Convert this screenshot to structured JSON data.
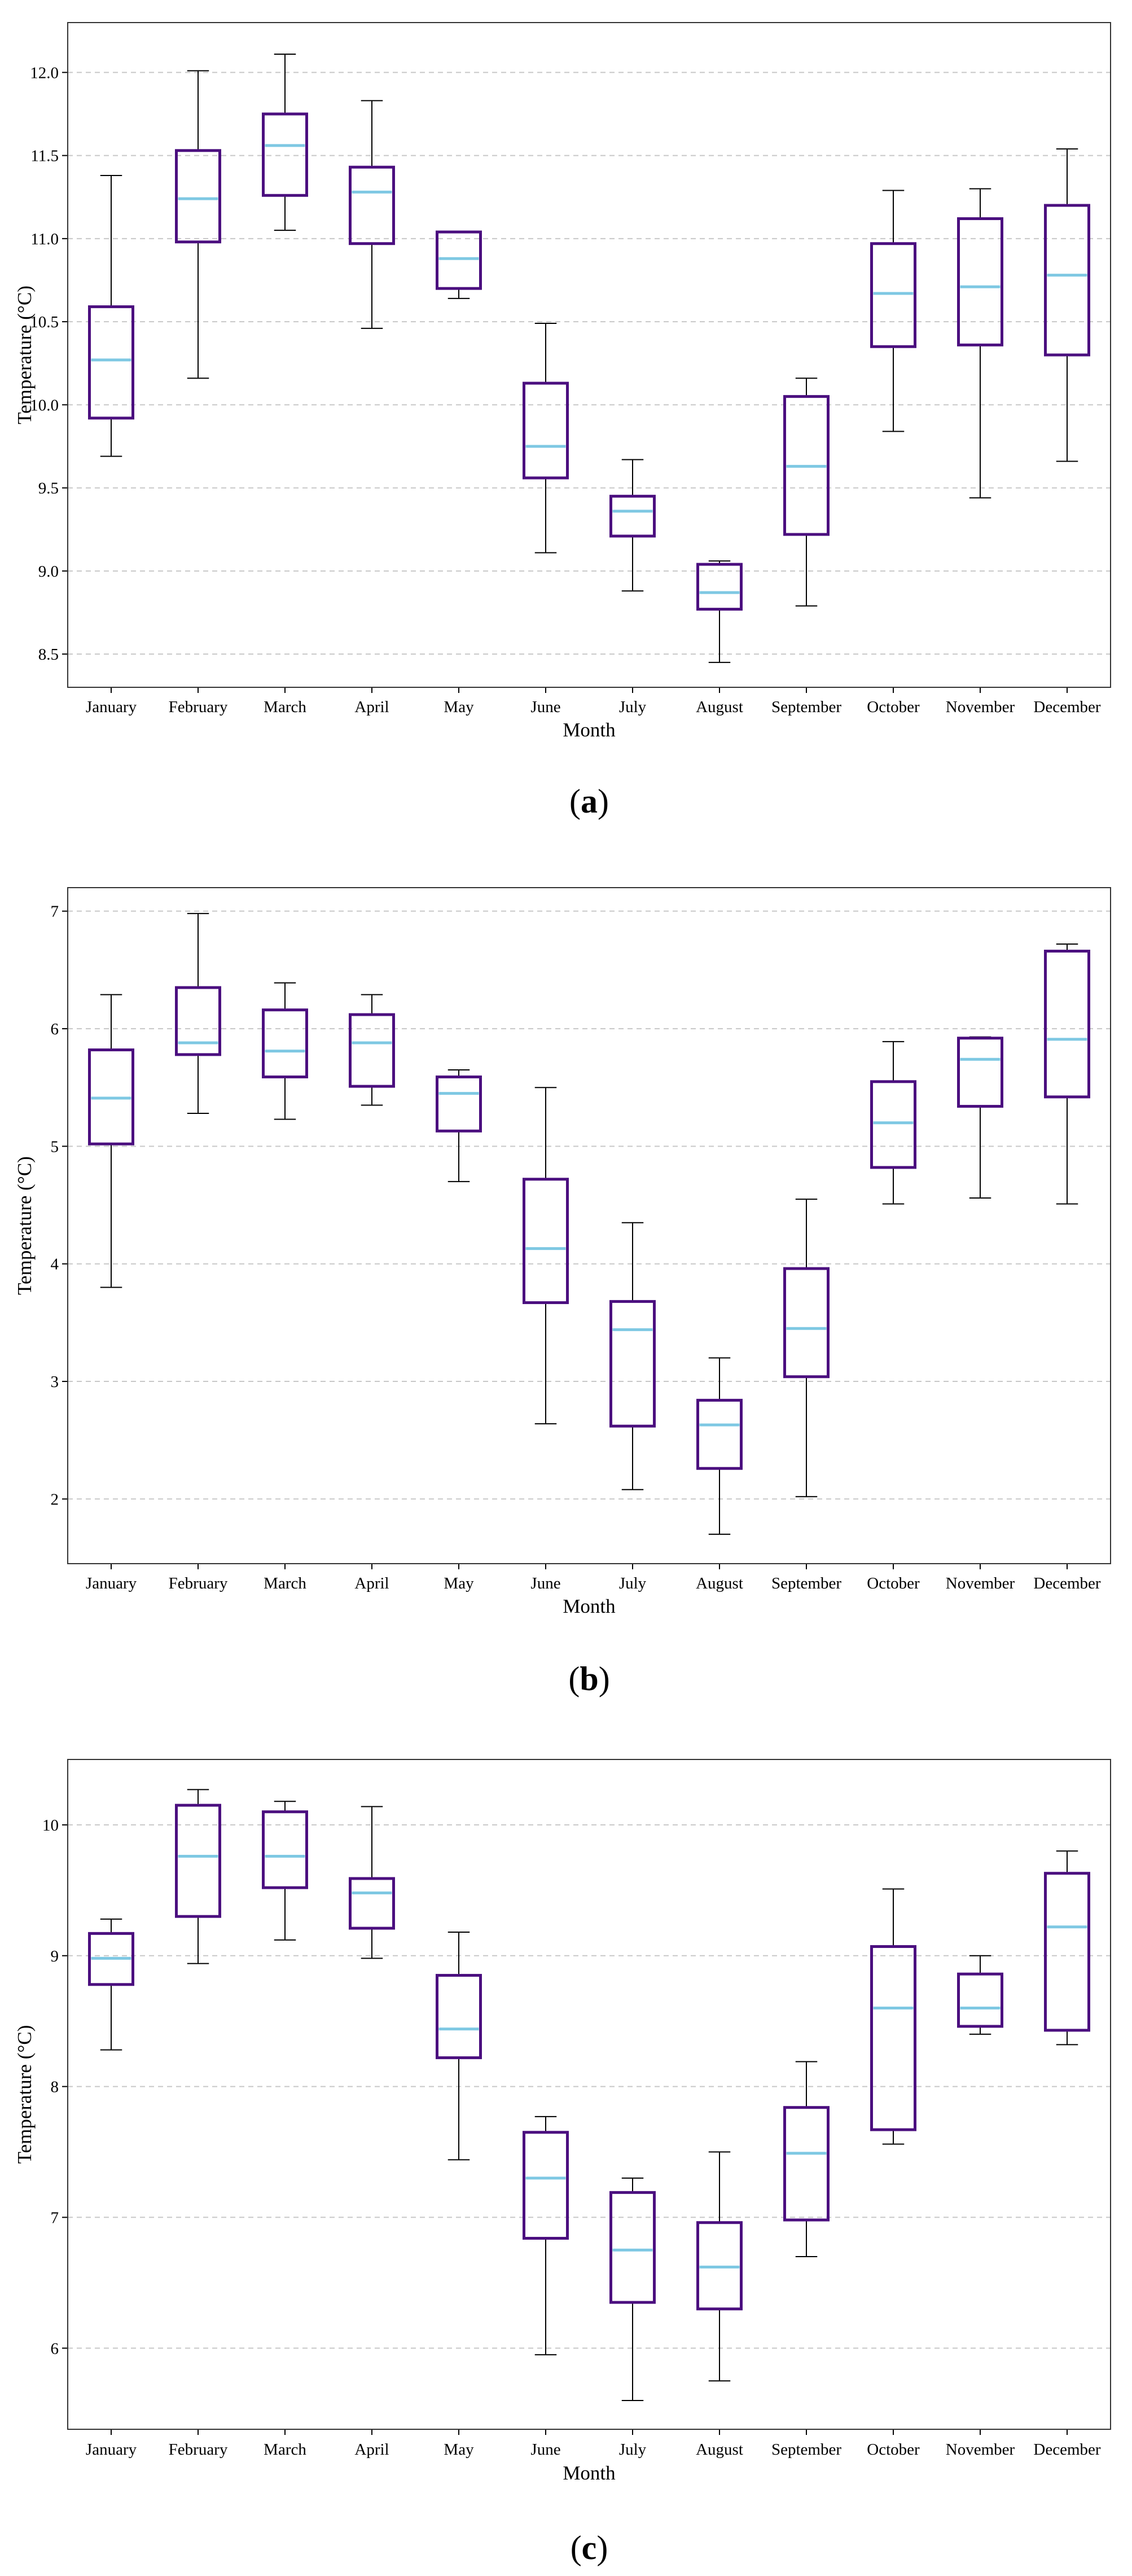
{
  "chart_data": [
    {
      "type": "box",
      "panel_label": "a",
      "xlabel": "Month",
      "ylabel": "Temperature (°C)",
      "ylim": [
        8.3,
        12.3
      ],
      "yticks": [
        8.5,
        9.0,
        9.5,
        10.0,
        10.5,
        11.0,
        11.5,
        12.0
      ],
      "ytick_labels": [
        "8.5",
        "9.0",
        "9.5",
        "10.0",
        "10.5",
        "11.0",
        "11.5",
        "12.0"
      ],
      "grid": "horizontal dashed",
      "colors": {
        "box": "#4b0f7f",
        "median": "#7ec8e3",
        "whisker": "#000000",
        "grid": "#c8c8c8"
      },
      "categories": [
        "January",
        "February",
        "March",
        "April",
        "May",
        "June",
        "July",
        "August",
        "September",
        "October",
        "November",
        "December"
      ],
      "series": [
        {
          "name": "January",
          "whislo": 9.69,
          "q1": 9.92,
          "med": 10.27,
          "q3": 10.59,
          "whishi": 11.38
        },
        {
          "name": "February",
          "whislo": 10.16,
          "q1": 10.98,
          "med": 11.24,
          "q3": 11.53,
          "whishi": 12.01
        },
        {
          "name": "March",
          "whislo": 11.05,
          "q1": 11.26,
          "med": 11.56,
          "q3": 11.75,
          "whishi": 12.11
        },
        {
          "name": "April",
          "whislo": 10.46,
          "q1": 10.97,
          "med": 11.28,
          "q3": 11.43,
          "whishi": 11.83
        },
        {
          "name": "May",
          "whislo": 10.64,
          "q1": 10.7,
          "med": 10.88,
          "q3": 11.04,
          "whishi": 11.04
        },
        {
          "name": "June",
          "whislo": 9.11,
          "q1": 9.56,
          "med": 9.75,
          "q3": 10.13,
          "whishi": 10.49
        },
        {
          "name": "July",
          "whislo": 8.88,
          "q1": 9.21,
          "med": 9.36,
          "q3": 9.45,
          "whishi": 9.67
        },
        {
          "name": "August",
          "whislo": 8.45,
          "q1": 8.77,
          "med": 8.87,
          "q3": 9.04,
          "whishi": 9.06
        },
        {
          "name": "September",
          "whislo": 8.79,
          "q1": 9.22,
          "med": 9.63,
          "q3": 10.05,
          "whishi": 10.16
        },
        {
          "name": "October",
          "whislo": 9.84,
          "q1": 10.35,
          "med": 10.67,
          "q3": 10.97,
          "whishi": 11.29
        },
        {
          "name": "November",
          "whislo": 9.44,
          "q1": 10.36,
          "med": 10.71,
          "q3": 11.12,
          "whishi": 11.3
        },
        {
          "name": "December",
          "whislo": 9.66,
          "q1": 10.3,
          "med": 10.78,
          "q3": 11.2,
          "whishi": 11.54
        }
      ]
    },
    {
      "type": "box",
      "panel_label": "b",
      "xlabel": "Month",
      "ylabel": "Temperature (°C)",
      "ylim": [
        1.45,
        7.2
      ],
      "yticks": [
        2,
        3,
        4,
        5,
        6,
        7
      ],
      "ytick_labels": [
        "2",
        "3",
        "4",
        "5",
        "6",
        "7"
      ],
      "grid": "horizontal dashed",
      "colors": {
        "box": "#4b0f7f",
        "median": "#7ec8e3",
        "whisker": "#000000",
        "grid": "#c8c8c8"
      },
      "categories": [
        "January",
        "February",
        "March",
        "April",
        "May",
        "June",
        "July",
        "August",
        "September",
        "October",
        "November",
        "December"
      ],
      "series": [
        {
          "name": "January",
          "whislo": 3.8,
          "q1": 5.02,
          "med": 5.41,
          "q3": 5.82,
          "whishi": 6.29
        },
        {
          "name": "February",
          "whislo": 5.28,
          "q1": 5.78,
          "med": 5.88,
          "q3": 6.35,
          "whishi": 6.98
        },
        {
          "name": "March",
          "whislo": 5.23,
          "q1": 5.59,
          "med": 5.81,
          "q3": 6.16,
          "whishi": 6.39
        },
        {
          "name": "April",
          "whislo": 5.35,
          "q1": 5.51,
          "med": 5.88,
          "q3": 6.12,
          "whishi": 6.29
        },
        {
          "name": "May",
          "whislo": 4.7,
          "q1": 5.13,
          "med": 5.45,
          "q3": 5.59,
          "whishi": 5.65
        },
        {
          "name": "June",
          "whislo": 2.64,
          "q1": 3.67,
          "med": 4.13,
          "q3": 4.72,
          "whishi": 5.5
        },
        {
          "name": "July",
          "whislo": 2.08,
          "q1": 2.62,
          "med": 3.44,
          "q3": 3.68,
          "whishi": 4.35
        },
        {
          "name": "August",
          "whislo": 1.7,
          "q1": 2.26,
          "med": 2.63,
          "q3": 2.84,
          "whishi": 3.2
        },
        {
          "name": "September",
          "whislo": 2.02,
          "q1": 3.04,
          "med": 3.45,
          "q3": 3.96,
          "whishi": 4.55
        },
        {
          "name": "October",
          "whislo": 4.51,
          "q1": 4.82,
          "med": 5.2,
          "q3": 5.55,
          "whishi": 5.89
        },
        {
          "name": "November",
          "whislo": 4.56,
          "q1": 5.34,
          "med": 5.74,
          "q3": 5.92,
          "whishi": 5.93
        },
        {
          "name": "December",
          "whislo": 4.51,
          "q1": 5.42,
          "med": 5.91,
          "q3": 6.66,
          "whishi": 6.72
        }
      ]
    },
    {
      "type": "box",
      "panel_label": "c",
      "xlabel": "Month",
      "ylabel": "Temperature (°C)",
      "ylim": [
        5.38,
        10.5
      ],
      "yticks": [
        6,
        7,
        8,
        9,
        10
      ],
      "ytick_labels": [
        "6",
        "7",
        "8",
        "9",
        "10"
      ],
      "grid": "horizontal dashed",
      "colors": {
        "box": "#4b0f7f",
        "median": "#7ec8e3",
        "whisker": "#000000",
        "grid": "#c8c8c8"
      },
      "categories": [
        "January",
        "February",
        "March",
        "April",
        "May",
        "June",
        "July",
        "August",
        "September",
        "October",
        "November",
        "December"
      ],
      "series": [
        {
          "name": "January",
          "whislo": 8.28,
          "q1": 8.78,
          "med": 8.98,
          "q3": 9.17,
          "whishi": 9.28
        },
        {
          "name": "February",
          "whislo": 8.94,
          "q1": 9.3,
          "med": 9.76,
          "q3": 10.15,
          "whishi": 10.27
        },
        {
          "name": "March",
          "whislo": 9.12,
          "q1": 9.52,
          "med": 9.76,
          "q3": 10.1,
          "whishi": 10.18
        },
        {
          "name": "April",
          "whislo": 8.98,
          "q1": 9.21,
          "med": 9.48,
          "q3": 9.59,
          "whishi": 10.14
        },
        {
          "name": "May",
          "whislo": 7.44,
          "q1": 8.22,
          "med": 8.44,
          "q3": 8.85,
          "whishi": 9.18
        },
        {
          "name": "June",
          "whislo": 5.95,
          "q1": 6.84,
          "med": 7.3,
          "q3": 7.65,
          "whishi": 7.77
        },
        {
          "name": "July",
          "whislo": 5.6,
          "q1": 6.35,
          "med": 6.75,
          "q3": 7.19,
          "whishi": 7.3
        },
        {
          "name": "August",
          "whislo": 5.75,
          "q1": 6.3,
          "med": 6.62,
          "q3": 6.96,
          "whishi": 7.5
        },
        {
          "name": "September",
          "whislo": 6.7,
          "q1": 6.98,
          "med": 7.49,
          "q3": 7.84,
          "whishi": 8.19
        },
        {
          "name": "October",
          "whislo": 7.56,
          "q1": 7.67,
          "med": 8.6,
          "q3": 9.07,
          "whishi": 9.51
        },
        {
          "name": "November",
          "whislo": 8.4,
          "q1": 8.46,
          "med": 8.6,
          "q3": 8.86,
          "whishi": 9.0
        },
        {
          "name": "December",
          "whislo": 8.32,
          "q1": 8.43,
          "med": 9.22,
          "q3": 9.63,
          "whishi": 9.8
        }
      ]
    }
  ]
}
